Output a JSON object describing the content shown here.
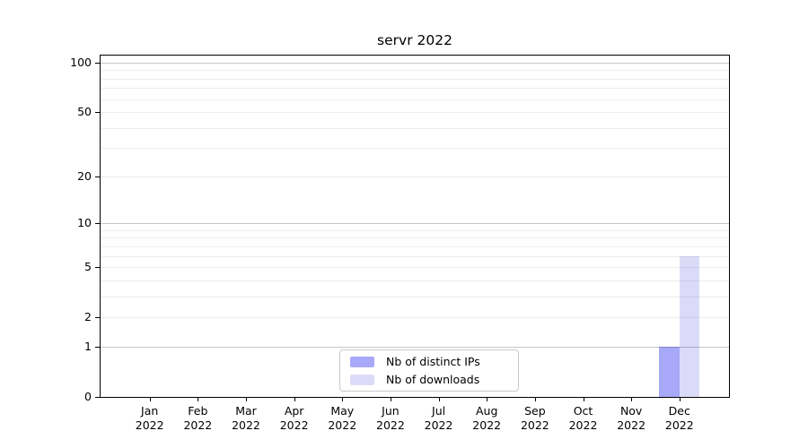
{
  "title": "servr 2022",
  "legend": {
    "items": [
      {
        "label": "Nb of distinct IPs",
        "color": "#a8a8f8"
      },
      {
        "label": "Nb of downloads",
        "color": "#dbdbf8"
      }
    ]
  },
  "chart_data": {
    "type": "bar",
    "title": "servr 2022",
    "categories": [
      "Jan 2022",
      "Feb 2022",
      "Mar 2022",
      "Apr 2022",
      "May 2022",
      "Jun 2022",
      "Jul 2022",
      "Aug 2022",
      "Sep 2022",
      "Oct 2022",
      "Nov 2022",
      "Dec 2022"
    ],
    "series": [
      {
        "name": "Nb of distinct IPs",
        "color": "#a8a8f8",
        "values": [
          0,
          0,
          0,
          0,
          0,
          0,
          0,
          0,
          0,
          0,
          0,
          1
        ]
      },
      {
        "name": "Nb of downloads",
        "color": "#dbdbf8",
        "values": [
          0,
          0,
          0,
          0,
          0,
          0,
          0,
          0,
          0,
          0,
          0,
          6
        ]
      }
    ],
    "yscale": "log1p",
    "yticks": [
      0,
      1,
      2,
      5,
      10,
      20,
      50,
      100
    ],
    "ylim": [
      0,
      110
    ],
    "gridlines": {
      "major": [
        1,
        10,
        100
      ],
      "minor": [
        2,
        3,
        4,
        5,
        6,
        7,
        8,
        9,
        20,
        30,
        40,
        50,
        60,
        70,
        80,
        90
      ]
    },
    "grid": "horizontal",
    "legend_position": "inside-bottom-center",
    "xlabel": "",
    "ylabel": ""
  },
  "colors": {
    "background": "#ffffff",
    "axis": "#000000",
    "grid_major": "rgba(0,0,0,0.22)",
    "grid_minor": "rgba(0,0,0,0.07)",
    "legend_border": "#c9c9c9"
  }
}
